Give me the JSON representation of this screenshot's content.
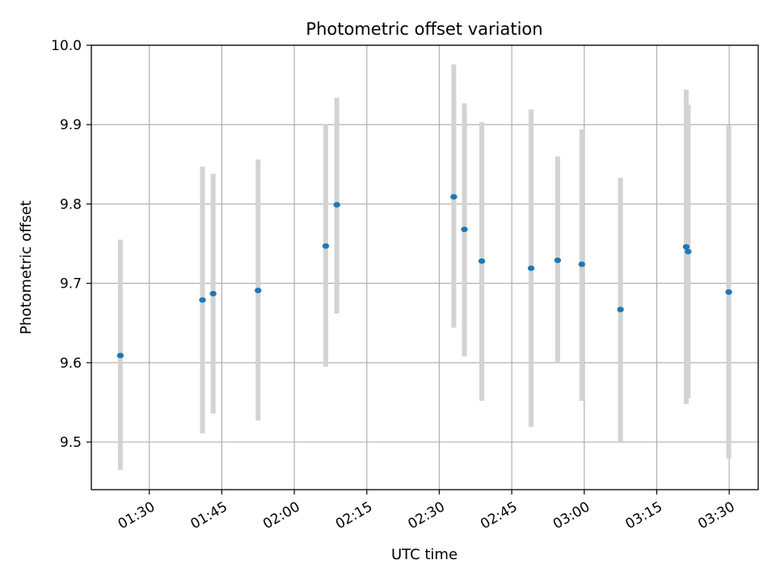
{
  "chart_data": {
    "type": "scatter",
    "title": "Photometric offset variation",
    "xlabel": "UTC time",
    "ylabel": "Photometric offset",
    "x_axis": {
      "type": "time",
      "range": [
        "01:18",
        "03:36"
      ],
      "ticks": [
        "01:30",
        "01:45",
        "02:00",
        "02:15",
        "02:30",
        "02:45",
        "03:00",
        "03:15",
        "03:30"
      ]
    },
    "y_axis": {
      "range": [
        9.44,
        10.0
      ],
      "ticks": [
        "9.5",
        "9.6",
        "9.7",
        "9.8",
        "9.9",
        "10.0"
      ]
    },
    "grid": true,
    "colors": {
      "point": "#1f77b4",
      "errorbar": "#d3d3d3",
      "grid": "#b0b0b0"
    },
    "points": [
      {
        "time": "01:24:00",
        "y": 9.609,
        "ylow": 9.465,
        "yhigh": 9.755
      },
      {
        "time": "01:41:00",
        "y": 9.679,
        "ylow": 9.511,
        "yhigh": 9.847
      },
      {
        "time": "01:43:12",
        "y": 9.687,
        "ylow": 9.536,
        "yhigh": 9.838
      },
      {
        "time": "01:52:30",
        "y": 9.691,
        "ylow": 9.527,
        "yhigh": 9.856
      },
      {
        "time": "02:06:30",
        "y": 9.747,
        "ylow": 9.595,
        "yhigh": 9.9
      },
      {
        "time": "02:08:48",
        "y": 9.799,
        "ylow": 9.662,
        "yhigh": 9.934
      },
      {
        "time": "02:33:00",
        "y": 9.809,
        "ylow": 9.644,
        "yhigh": 9.976
      },
      {
        "time": "02:35:12",
        "y": 9.768,
        "ylow": 9.608,
        "yhigh": 9.927
      },
      {
        "time": "02:38:48",
        "y": 9.728,
        "ylow": 9.552,
        "yhigh": 9.903
      },
      {
        "time": "02:49:00",
        "y": 9.719,
        "ylow": 9.519,
        "yhigh": 9.919
      },
      {
        "time": "02:54:30",
        "y": 9.729,
        "ylow": 9.6,
        "yhigh": 9.86
      },
      {
        "time": "02:59:30",
        "y": 9.724,
        "ylow": 9.552,
        "yhigh": 9.894
      },
      {
        "time": "03:07:30",
        "y": 9.667,
        "ylow": 9.501,
        "yhigh": 9.833
      },
      {
        "time": "03:21:06",
        "y": 9.746,
        "ylow": 9.548,
        "yhigh": 9.944
      },
      {
        "time": "03:21:30",
        "y": 9.74,
        "ylow": 9.555,
        "yhigh": 9.925
      },
      {
        "time": "03:29:54",
        "y": 9.689,
        "ylow": 9.479,
        "yhigh": 9.899
      }
    ]
  }
}
